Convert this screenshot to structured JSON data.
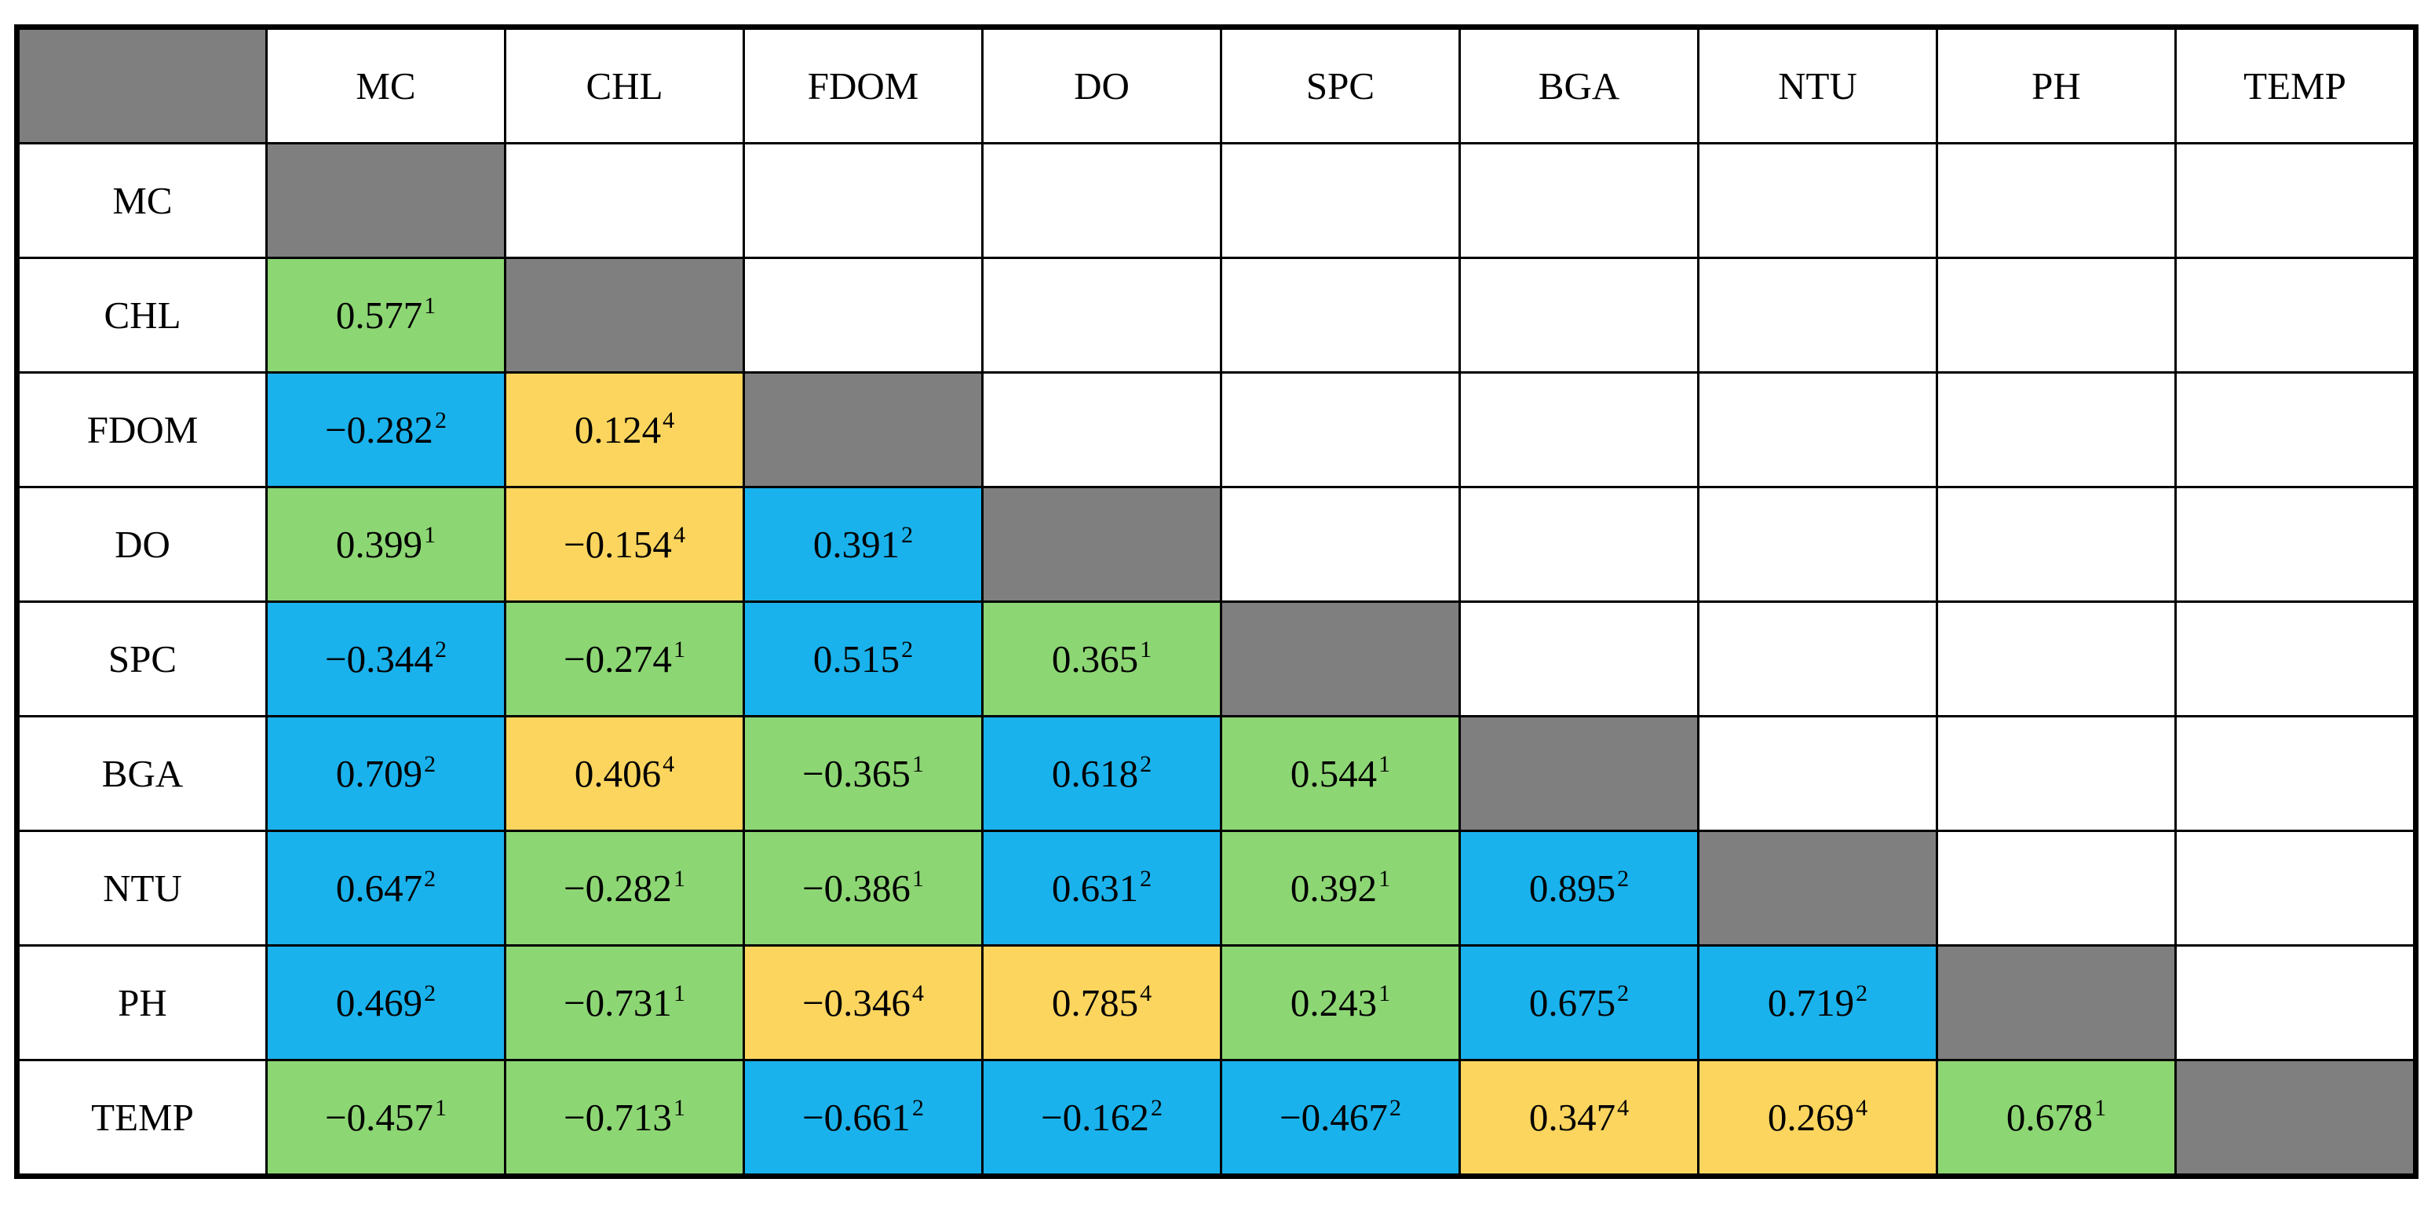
{
  "colors": {
    "page_background": "#FFFFFF",
    "border": "#000000",
    "gray": "#7F7F7F",
    "green": "#8DD674",
    "blue": "#1AB2EC",
    "yellow": "#FBD55E"
  },
  "chart_data": {
    "type": "table",
    "subtype": "correlation-matrix",
    "title": "",
    "columns": [
      "",
      "MC",
      "CHL",
      "FDOM",
      "DO",
      "SPC",
      "BGA",
      "NTU",
      "PH",
      "TEMP"
    ],
    "legend_position": "none",
    "rows": [
      {
        "label": "MC",
        "cells": [
          "diag",
          null,
          null,
          null,
          null,
          null,
          null,
          null,
          null
        ]
      },
      {
        "label": "CHL",
        "cells": [
          {
            "v": "0.577",
            "sup": "1",
            "color": "green"
          },
          "diag",
          null,
          null,
          null,
          null,
          null,
          null,
          null
        ]
      },
      {
        "label": "FDOM",
        "cells": [
          {
            "v": "−0.282",
            "sup": "2",
            "color": "blue"
          },
          {
            "v": "0.124",
            "sup": "4",
            "color": "yellow"
          },
          "diag",
          null,
          null,
          null,
          null,
          null,
          null
        ]
      },
      {
        "label": "DO",
        "cells": [
          {
            "v": "0.399",
            "sup": "1",
            "color": "green"
          },
          {
            "v": "−0.154",
            "sup": "4",
            "color": "yellow"
          },
          {
            "v": "0.391",
            "sup": "2",
            "color": "blue"
          },
          "diag",
          null,
          null,
          null,
          null,
          null
        ]
      },
      {
        "label": "SPC",
        "cells": [
          {
            "v": "−0.344",
            "sup": "2",
            "color": "blue"
          },
          {
            "v": "−0.274",
            "sup": "1",
            "color": "green"
          },
          {
            "v": "0.515",
            "sup": "2",
            "color": "blue"
          },
          {
            "v": "0.365",
            "sup": "1",
            "color": "green"
          },
          "diag",
          null,
          null,
          null,
          null
        ]
      },
      {
        "label": "BGA",
        "cells": [
          {
            "v": "0.709",
            "sup": "2",
            "color": "blue"
          },
          {
            "v": "0.406",
            "sup": "4",
            "color": "yellow"
          },
          {
            "v": "−0.365",
            "sup": "1",
            "color": "green"
          },
          {
            "v": "0.618",
            "sup": "2",
            "color": "blue"
          },
          {
            "v": "0.544",
            "sup": "1",
            "color": "green"
          },
          "diag",
          null,
          null,
          null
        ]
      },
      {
        "label": "NTU",
        "cells": [
          {
            "v": "0.647",
            "sup": "2",
            "color": "blue"
          },
          {
            "v": "−0.282",
            "sup": "1",
            "color": "green"
          },
          {
            "v": "−0.386",
            "sup": "1",
            "color": "green"
          },
          {
            "v": "0.631",
            "sup": "2",
            "color": "blue"
          },
          {
            "v": "0.392",
            "sup": "1",
            "color": "green"
          },
          {
            "v": "0.895",
            "sup": "2",
            "color": "blue"
          },
          "diag",
          null,
          null
        ]
      },
      {
        "label": "PH",
        "cells": [
          {
            "v": "0.469",
            "sup": "2",
            "color": "blue"
          },
          {
            "v": "−0.731",
            "sup": "1",
            "color": "green"
          },
          {
            "v": "−0.346",
            "sup": "4",
            "color": "yellow"
          },
          {
            "v": "0.785",
            "sup": "4",
            "color": "yellow"
          },
          {
            "v": "0.243",
            "sup": "1",
            "color": "green"
          },
          {
            "v": "0.675",
            "sup": "2",
            "color": "blue"
          },
          {
            "v": "0.719",
            "sup": "2",
            "color": "blue"
          },
          "diag",
          null
        ]
      },
      {
        "label": "TEMP",
        "cells": [
          {
            "v": "−0.457",
            "sup": "1",
            "color": "green"
          },
          {
            "v": "−0.713",
            "sup": "1",
            "color": "green"
          },
          {
            "v": "−0.661",
            "sup": "2",
            "color": "blue"
          },
          {
            "v": "−0.162",
            "sup": "2",
            "color": "blue"
          },
          {
            "v": "−0.467",
            "sup": "2",
            "color": "blue"
          },
          {
            "v": "0.347",
            "sup": "4",
            "color": "yellow"
          },
          {
            "v": "0.269",
            "sup": "4",
            "color": "yellow"
          },
          {
            "v": "0.678",
            "sup": "1",
            "color": "green"
          },
          "diag"
        ]
      }
    ]
  }
}
